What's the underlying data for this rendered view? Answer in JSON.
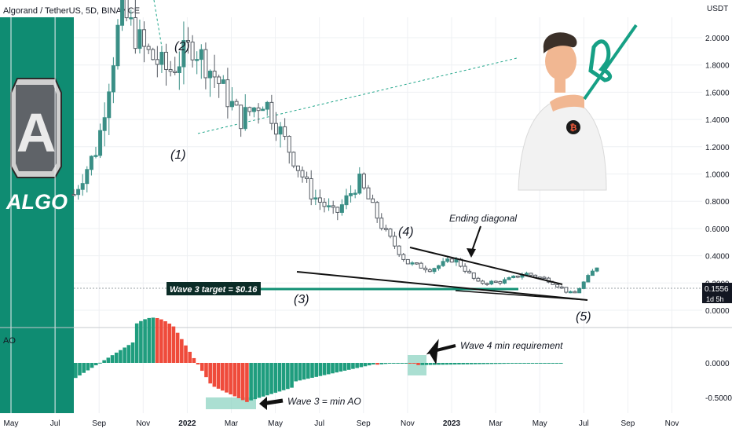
{
  "header": {
    "symbol": "Algorand / TetherUS, 5D, BINANCE"
  },
  "brand": {
    "name": "ALGO",
    "panel_color": "#0f8c72"
  },
  "price_axis": {
    "currency": "USDT",
    "ticks": [
      "2.0000",
      "1.8000",
      "1.6000",
      "1.4000",
      "1.2000",
      "1.0000",
      "0.8000",
      "0.6000",
      "0.4000",
      "0.2000",
      "0.0000"
    ],
    "last_price": "0.1556",
    "countdown": "1d 5h"
  },
  "ao_axis": {
    "name": "AO",
    "ticks": [
      "0.0000",
      "-0.5000"
    ]
  },
  "time_axis": {
    "labels": [
      "May",
      "Jul",
      "Sep",
      "Nov",
      "2022",
      "Mar",
      "May",
      "Jul",
      "Sep",
      "Nov",
      "2023",
      "Mar",
      "May",
      "Jul",
      "Sep",
      "Nov"
    ]
  },
  "annotations": {
    "wave1": "(1)",
    "wave2": "(2)",
    "wave3": "(3)",
    "wave4": "(4)",
    "wave5": "(5)",
    "ending_diagonal": "Ending diagonal",
    "wave3_target": "Wave 3 target = $0.16",
    "wave4_min": "Wave 4 min requirement",
    "wave3_min_ao": "Wave 3 = min AO"
  },
  "colors": {
    "up": "#3a8f86",
    "down": "#eb4a3a",
    "ao_up": "#1f9d7e",
    "ao_down": "#ef4b3b",
    "target": "#129074"
  },
  "chart_data": {
    "type": "candlestick",
    "title": "Algorand / TetherUS, 5D, BINANCE",
    "ylabel": "USDT",
    "ylim": [
      0,
      2.2
    ],
    "close_path": [
      [
        "2021-05",
        0.85
      ],
      [
        "2021-08",
        1.2
      ],
      [
        "2021-08-20",
        2.2
      ],
      [
        "2021-09",
        1.9
      ],
      [
        "2021-10",
        1.75
      ],
      [
        "2021-11",
        1.95
      ],
      [
        "2021-11-20",
        1.7
      ],
      [
        "2021-12",
        1.4
      ],
      [
        "2021-12-20",
        1.55
      ],
      [
        "2022-01",
        1.2
      ],
      [
        "2022-02",
        0.85
      ],
      [
        "2022-03",
        0.7
      ],
      [
        "2022-04",
        0.95
      ],
      [
        "2022-05",
        0.6
      ],
      [
        "2022-06",
        0.35
      ],
      [
        "2022-09",
        0.3
      ],
      [
        "2022-11",
        0.38
      ],
      [
        "2022-12",
        0.2
      ],
      [
        "2023-01",
        0.21
      ],
      [
        "2023-02",
        0.27
      ],
      [
        "2023-04",
        0.22
      ],
      [
        "2023-06",
        0.11
      ],
      [
        "2023-07",
        0.32
      ]
    ],
    "last_price": 0.1556,
    "target_level": 0.16
  }
}
